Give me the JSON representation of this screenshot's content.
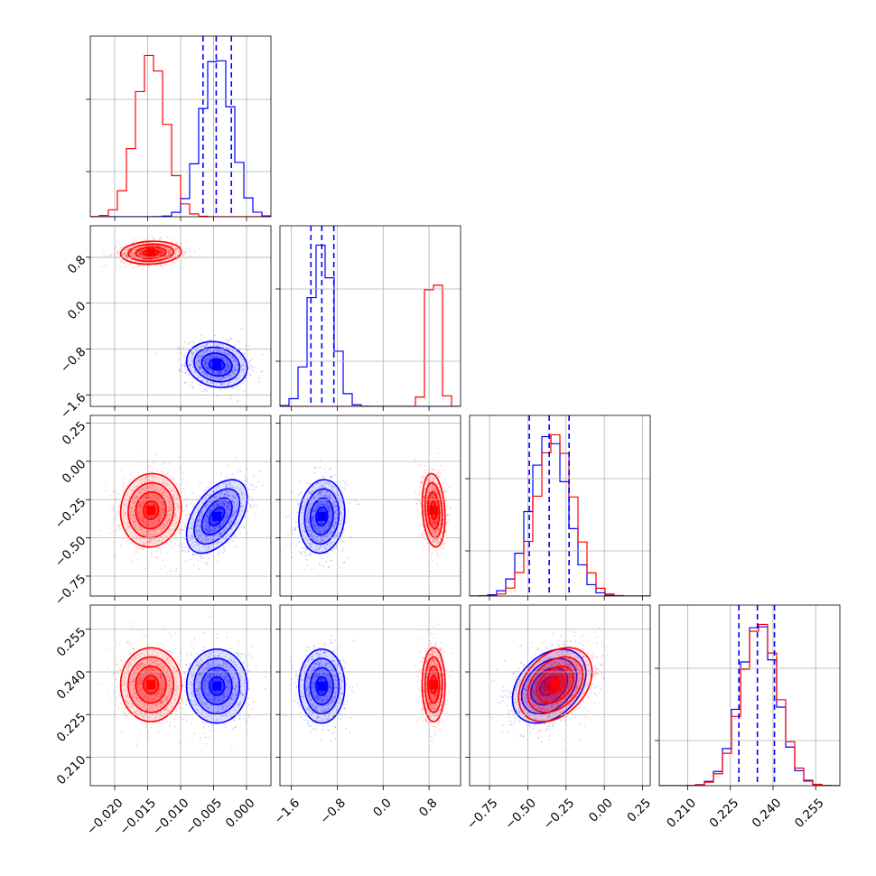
{
  "chart_data": {
    "type": "corner",
    "grid": true,
    "legend": "none",
    "colors": {
      "series_a": "#0000ff",
      "series_b": "#ff0000"
    },
    "params": [
      {
        "range": [
          -0.0237,
          0.0037
        ],
        "ticks": [
          -0.02,
          -0.015,
          -0.01,
          -0.005,
          0.0
        ],
        "tick_labels": [
          "−0.020",
          "−0.015",
          "−0.010",
          "−0.005",
          "0.000"
        ],
        "blue": {
          "mean": -0.0045,
          "sd": 0.0023
        },
        "red": {
          "mean": -0.0145,
          "sd": 0.0023
        }
      },
      {
        "range": [
          -1.8,
          1.35
        ],
        "ticks": [
          -1.6,
          -0.8,
          0.0,
          0.8
        ],
        "tick_labels": [
          "−1.6",
          "−0.8",
          "0.0",
          "0.8"
        ],
        "blue": {
          "mean": -1.07,
          "sd": 0.2
        },
        "red": {
          "mean": 0.88,
          "sd": 0.1
        }
      },
      {
        "range": [
          -0.88,
          0.3
        ],
        "ticks": [
          -0.75,
          -0.5,
          -0.25,
          0.0,
          0.25
        ],
        "tick_labels": [
          "−0.75",
          "−0.50",
          "−0.25",
          "0.00",
          "0.25"
        ],
        "blue": {
          "mean": -0.36,
          "sd": 0.12
        },
        "red": {
          "mean": -0.32,
          "sd": 0.12
        }
      },
      {
        "range": [
          0.2,
          0.2635
        ],
        "ticks": [
          0.21,
          0.225,
          0.24,
          0.255
        ],
        "tick_labels": [
          "0.210",
          "0.225",
          "0.240",
          "0.255"
        ],
        "blue": {
          "mean": 0.235,
          "sd": 0.0065
        },
        "red": {
          "mean": 0.2355,
          "sd": 0.0065
        }
      }
    ],
    "quantiles_blue": [
      [
        -0.0066,
        -0.0046,
        -0.0023
      ],
      [
        -1.26,
        -1.07,
        -0.86
      ],
      [
        -0.49,
        -0.36,
        -0.23
      ],
      [
        0.228,
        0.2345,
        0.2405
      ]
    ],
    "hist_bins": 20,
    "hist1d_ylim_rel": 1.12,
    "contour_levels_sigma": [
      0.5,
      1.0,
      1.5,
      2.0
    ],
    "scatter_points_per_panel": 900,
    "correlations": {
      "1-0": {
        "blue": -0.15,
        "red": 0.1
      },
      "2-0": {
        "blue": 0.5,
        "red": 0.05
      },
      "2-1": {
        "blue": 0.1,
        "red": -0.2
      },
      "3-0": {
        "blue": 0.0,
        "red": 0.0
      },
      "3-1": {
        "blue": 0.0,
        "red": 0.0
      },
      "3-2": {
        "blue": 0.35,
        "red": 0.35
      }
    }
  }
}
